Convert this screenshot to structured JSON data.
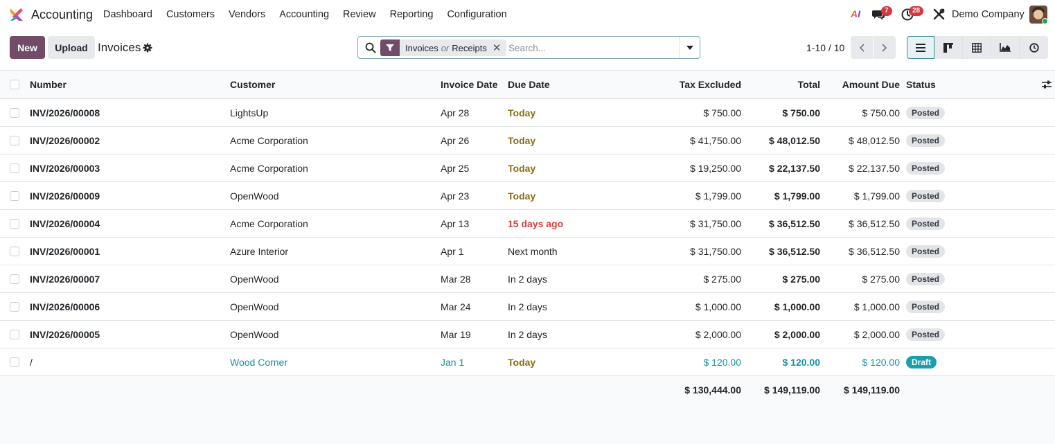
{
  "navbar": {
    "app_name": "Accounting",
    "menu": [
      "Dashboard",
      "Customers",
      "Vendors",
      "Accounting",
      "Review",
      "Reporting",
      "Configuration"
    ],
    "ai_label_a": "A",
    "ai_label_i": "I",
    "chat_badge": "7",
    "activity_badge": "28",
    "company": "Demo Company"
  },
  "control": {
    "new_label": "New",
    "upload_label": "Upload",
    "title": "Invoices",
    "facet_left": "Invoices",
    "facet_or": "or",
    "facet_right": "Receipts",
    "facet_remove": "✕",
    "search_placeholder": "Search...",
    "pager": "1-10 / 10"
  },
  "table": {
    "headers": {
      "number": "Number",
      "customer": "Customer",
      "invoice_date": "Invoice Date",
      "due_date": "Due Date",
      "tax_excluded": "Tax Excluded",
      "total": "Total",
      "amount_due": "Amount Due",
      "status": "Status"
    },
    "rows": [
      {
        "number": "INV/2026/00008",
        "customer": "LightsUp",
        "invoice_date": "Apr 28",
        "due_date": "Today",
        "due_style": "today",
        "tax_excluded": "$ 750.00",
        "total": "$ 750.00",
        "amount_due": "$ 750.00",
        "status": "Posted"
      },
      {
        "number": "INV/2026/00002",
        "customer": "Acme Corporation",
        "invoice_date": "Apr 26",
        "due_date": "Today",
        "due_style": "today",
        "tax_excluded": "$ 41,750.00",
        "total": "$ 48,012.50",
        "amount_due": "$ 48,012.50",
        "status": "Posted"
      },
      {
        "number": "INV/2026/00003",
        "customer": "Acme Corporation",
        "invoice_date": "Apr 25",
        "due_date": "Today",
        "due_style": "today",
        "tax_excluded": "$ 19,250.00",
        "total": "$ 22,137.50",
        "amount_due": "$ 22,137.50",
        "status": "Posted"
      },
      {
        "number": "INV/2026/00009",
        "customer": "OpenWood",
        "invoice_date": "Apr 23",
        "due_date": "Today",
        "due_style": "today",
        "tax_excluded": "$ 1,799.00",
        "total": "$ 1,799.00",
        "amount_due": "$ 1,799.00",
        "status": "Posted"
      },
      {
        "number": "INV/2026/00004",
        "customer": "Acme Corporation",
        "invoice_date": "Apr 13",
        "due_date": "15 days ago",
        "due_style": "late",
        "tax_excluded": "$ 31,750.00",
        "total": "$ 36,512.50",
        "amount_due": "$ 36,512.50",
        "status": "Posted"
      },
      {
        "number": "INV/2026/00001",
        "customer": "Azure Interior",
        "invoice_date": "Apr 1",
        "due_date": "Next month",
        "due_style": "normal",
        "tax_excluded": "$ 31,750.00",
        "total": "$ 36,512.50",
        "amount_due": "$ 36,512.50",
        "status": "Posted"
      },
      {
        "number": "INV/2026/00007",
        "customer": "OpenWood",
        "invoice_date": "Mar 28",
        "due_date": "In 2 days",
        "due_style": "normal",
        "tax_excluded": "$ 275.00",
        "total": "$ 275.00",
        "amount_due": "$ 275.00",
        "status": "Posted"
      },
      {
        "number": "INV/2026/00006",
        "customer": "OpenWood",
        "invoice_date": "Mar 24",
        "due_date": "In 2 days",
        "due_style": "normal",
        "tax_excluded": "$ 1,000.00",
        "total": "$ 1,000.00",
        "amount_due": "$ 1,000.00",
        "status": "Posted"
      },
      {
        "number": "INV/2026/00005",
        "customer": "OpenWood",
        "invoice_date": "Mar 19",
        "due_date": "In 2 days",
        "due_style": "normal",
        "tax_excluded": "$ 2,000.00",
        "total": "$ 2,000.00",
        "amount_due": "$ 2,000.00",
        "status": "Posted"
      },
      {
        "number": "/",
        "customer": "Wood Corner",
        "invoice_date": "Jan 1",
        "due_date": "Today",
        "due_style": "today",
        "tax_excluded": "$ 120.00",
        "total": "$ 120.00",
        "amount_due": "$ 120.00",
        "status": "Draft"
      }
    ],
    "totals": {
      "tax_excluded": "$ 130,444.00",
      "total": "$ 149,119.00",
      "amount_due": "$ 149,119.00"
    }
  },
  "colors": {
    "brand": "#714b67",
    "accent": "#1a9fae",
    "due_today": "#8a6d16",
    "due_late": "#d23f3a",
    "badge": "#d9363e"
  }
}
